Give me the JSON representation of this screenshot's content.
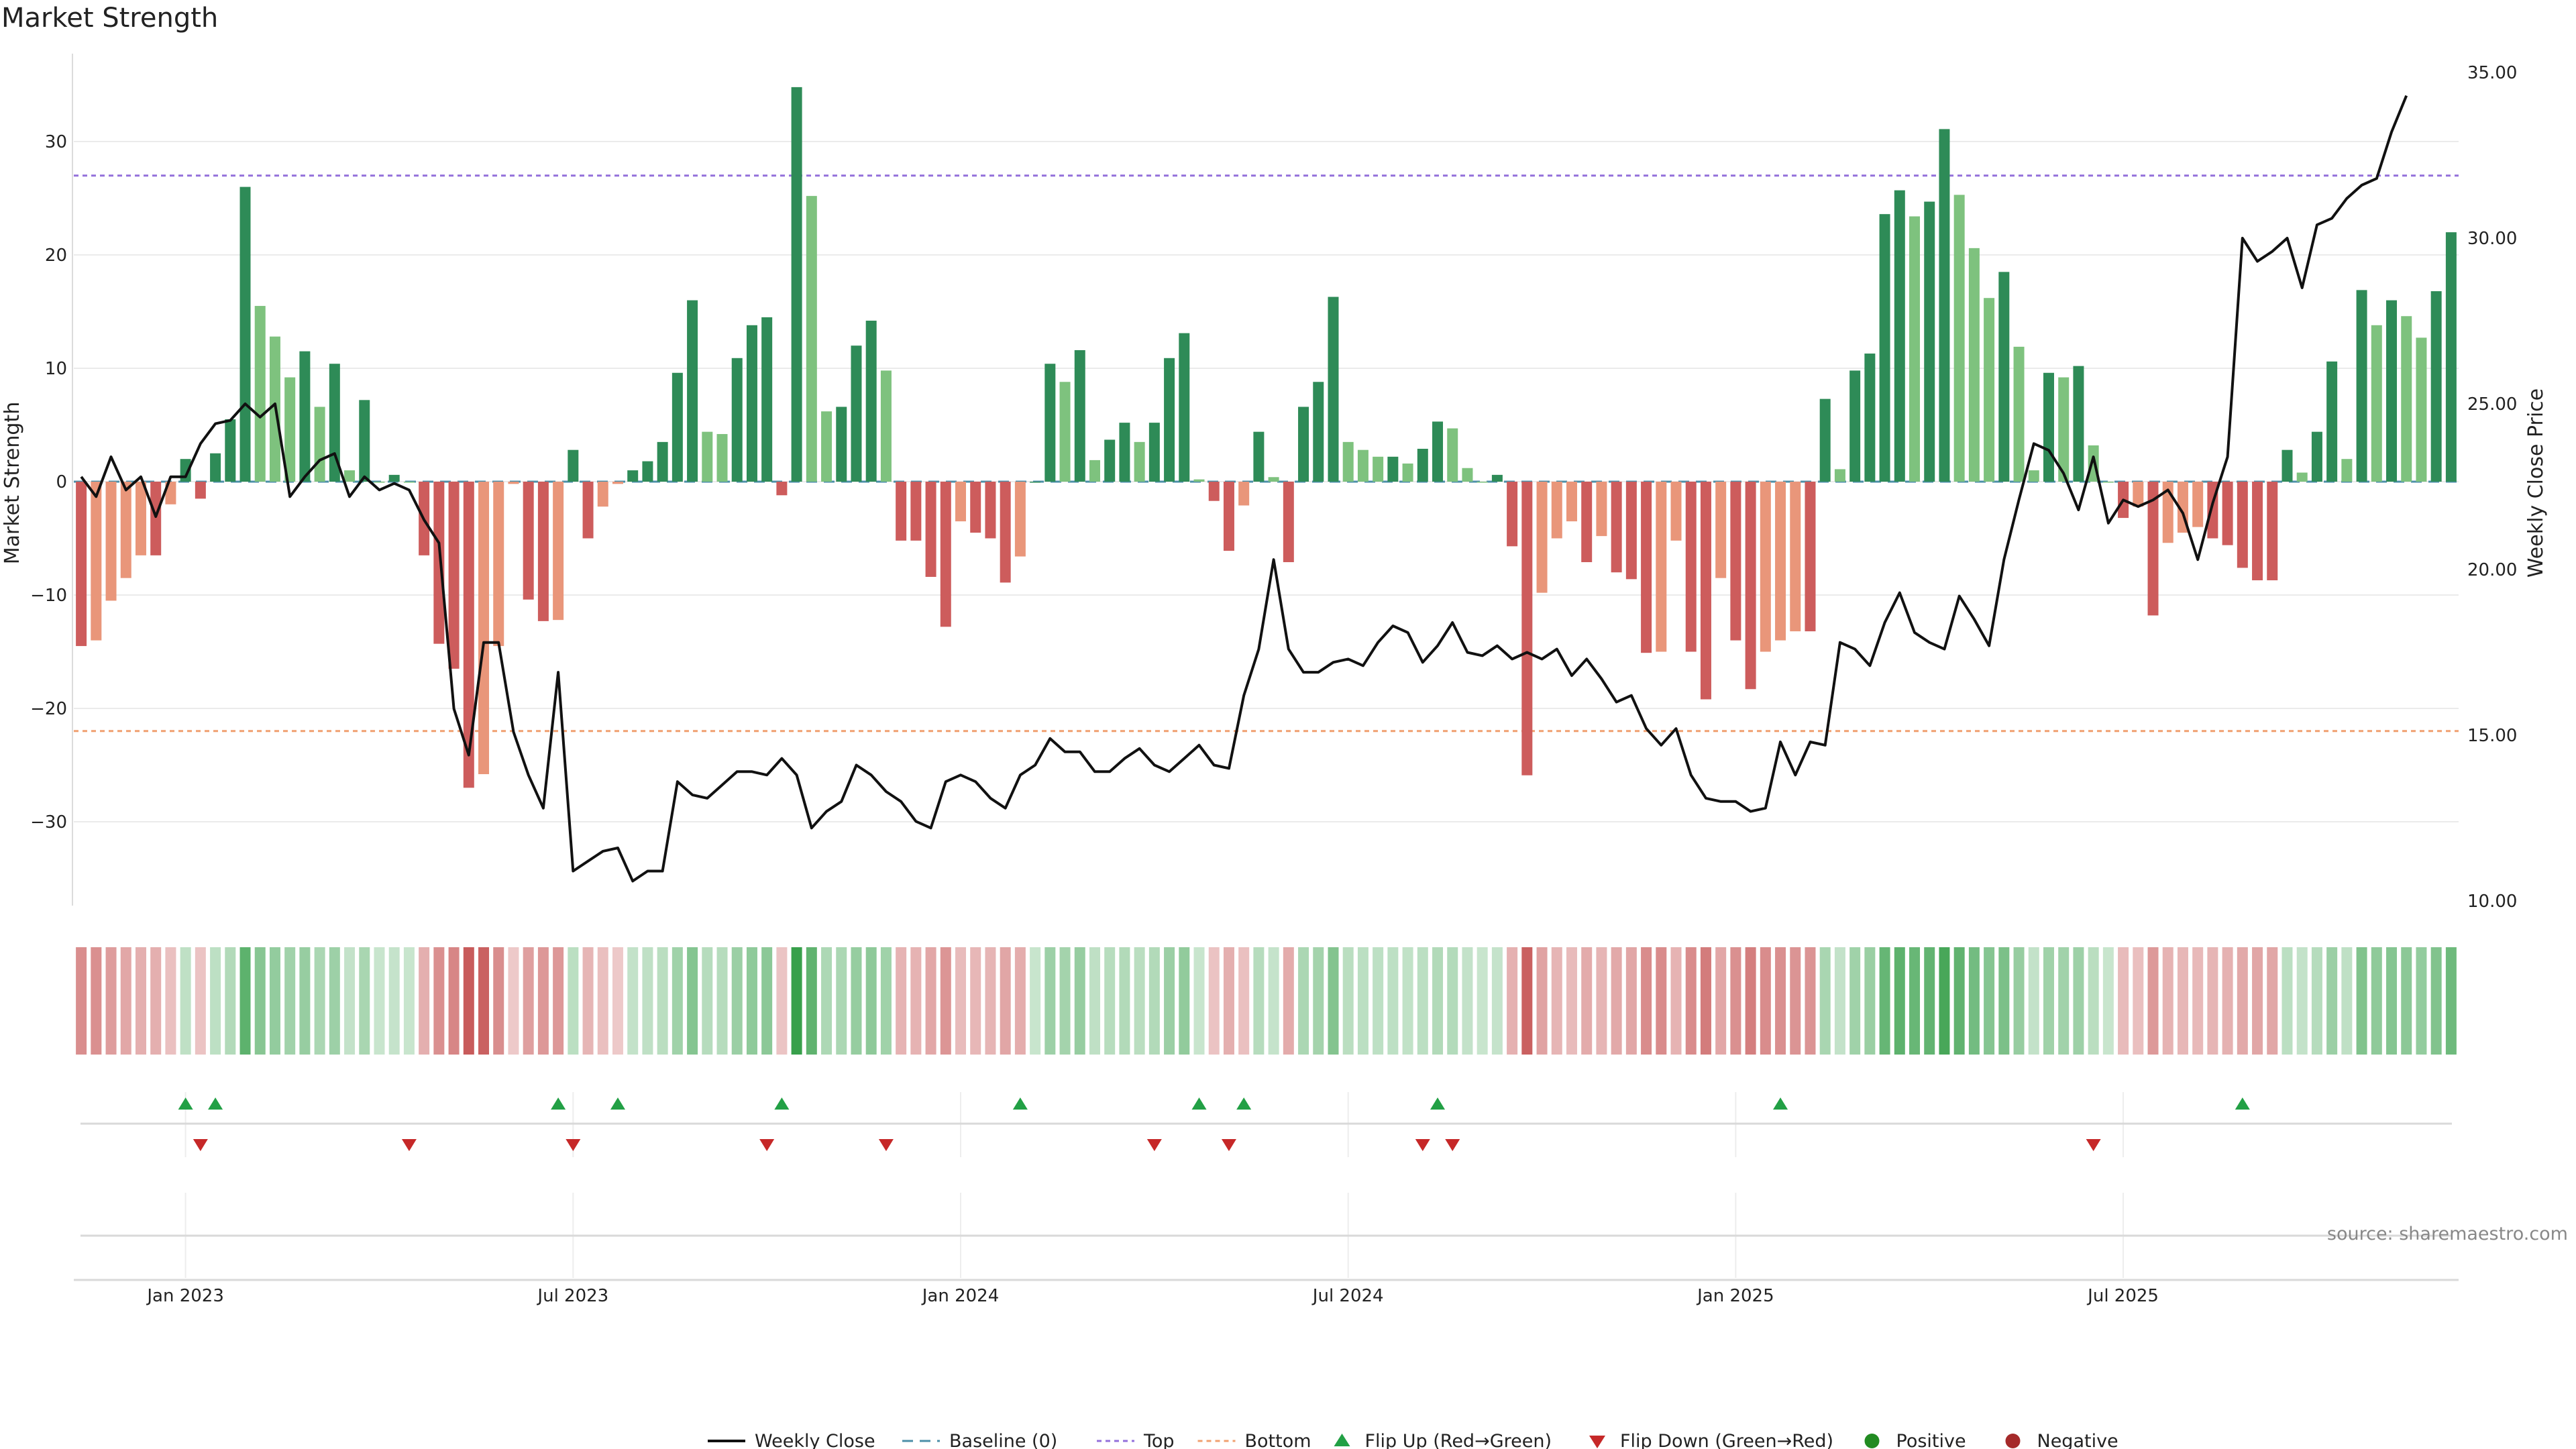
{
  "title": "Market Strength",
  "source": "source: sharemaestro.com",
  "chart_data": {
    "type": "bar",
    "ylabel_left": "Market Strength",
    "ylabel_right": "Weekly Close Price",
    "ylim_left": [
      -38,
      36
    ],
    "ylim_right": [
      10,
      35
    ],
    "yticks_left": [
      30,
      20,
      10,
      0,
      -10,
      -20,
      -30
    ],
    "yticks_right": [
      "35.00",
      "30.00",
      "25.00",
      "20.00",
      "15.00",
      "10.00"
    ],
    "yticks_left_labels": [
      "30",
      "20",
      "10",
      "0",
      "−10",
      "−20",
      "−30"
    ],
    "x_ticks": [
      "Jan 2023",
      "Jul 2023",
      "Jan 2024",
      "Jul 2024",
      "Jan 2025",
      "Jul 2025"
    ],
    "top_line": 27,
    "bottom_line": -22,
    "grid": true,
    "legend_position": "bottom",
    "legend": {
      "weekly_close": "Weekly Close",
      "baseline": "Baseline (0)",
      "top": "Top",
      "bottom": "Bottom",
      "flip_up": "Flip Up (Red→Green)",
      "flip_down": "Flip Down (Green→Red)",
      "positive": "Positive",
      "negative": "Negative"
    },
    "strength": [
      -14.5,
      -14,
      -10.5,
      -8.5,
      -6.5,
      -6.5,
      -2,
      2,
      -1.5,
      2.5,
      5.5,
      26,
      15.5,
      12.8,
      9.2,
      11.5,
      6.6,
      10.4,
      1,
      7.2,
      0,
      0.6,
      0,
      -6.5,
      -14.3,
      -16.5,
      -27,
      -25.8,
      -14.5,
      -0.2,
      -10.4,
      -12.3,
      -12.2,
      2.8,
      -5,
      -2.2,
      -0.2,
      1,
      1.8,
      3.5,
      9.6,
      16,
      4.4,
      4.2,
      10.9,
      13.8,
      14.5,
      -1.2,
      34.8,
      25.2,
      6.2,
      6.6,
      12,
      14.2,
      9.8,
      -5.2,
      -5.2,
      -8.4,
      -12.8,
      -3.5,
      -4.5,
      -5,
      -8.9,
      -6.6,
      0,
      10.4,
      8.8,
      11.6,
      1.9,
      3.7,
      5.2,
      3.5,
      5.2,
      10.9,
      13.1,
      0.2,
      -1.7,
      -6.1,
      -2.1,
      4.4,
      0.4,
      -7.1,
      6.6,
      8.8,
      16.3,
      3.5,
      2.8,
      2.2,
      2.2,
      1.6,
      2.9,
      5.3,
      4.7,
      1.2,
      0,
      0.6,
      -5.7,
      -25.9,
      -9.8,
      -5,
      -3.5,
      -7.1,
      -4.8,
      -8,
      -8.6,
      -15.1,
      -15,
      -5.2,
      -15,
      -19.2,
      -8.5,
      -14,
      -18.3,
      -15,
      -14,
      -13.2,
      -13.2,
      7.3,
      1.1,
      9.8,
      11.3,
      23.6,
      25.7,
      23.4,
      24.7,
      31.1,
      25.3,
      20.6,
      16.2,
      18.5,
      11.9,
      1,
      9.6,
      9.2,
      10.2,
      3.2,
      0,
      -3.2,
      -2.2,
      -11.8,
      -5.4,
      -4.5,
      -4,
      -5,
      -5.6,
      -7.6,
      -8.7,
      -8.7,
      2.8,
      0.8,
      4.4,
      10.6,
      2,
      16.9,
      13.8,
      16,
      14.6,
      12.7,
      16.8,
      22
    ],
    "close": [
      22.8,
      22.2,
      23.4,
      22.4,
      22.8,
      21.6,
      22.8,
      22.8,
      23.8,
      24.4,
      24.5,
      25,
      24.6,
      25,
      22.2,
      22.8,
      23.3,
      23.5,
      22.2,
      22.8,
      22.4,
      22.6,
      22.4,
      21.5,
      20.8,
      15.8,
      14.4,
      17.8,
      17.8,
      15.1,
      13.8,
      12.8,
      16.9,
      10.9,
      11.2,
      11.5,
      11.6,
      10.6,
      10.9,
      10.9,
      13.6,
      13.2,
      13.1,
      13.5,
      13.9,
      13.9,
      13.8,
      14.3,
      13.8,
      12.2,
      12.7,
      13,
      14.1,
      13.8,
      13.3,
      13,
      12.4,
      12.2,
      13.6,
      13.8,
      13.6,
      13.1,
      12.8,
      13.8,
      14.1,
      14.9,
      14.5,
      14.5,
      13.9,
      13.9,
      14.3,
      14.6,
      14.1,
      13.9,
      14.3,
      14.7,
      14.1,
      14,
      16.2,
      17.6,
      20.3,
      17.6,
      16.9,
      16.9,
      17.2,
      17.3,
      17.1,
      17.8,
      18.3,
      18.1,
      17.2,
      17.7,
      18.4,
      17.5,
      17.4,
      17.7,
      17.3,
      17.5,
      17.3,
      17.6,
      16.8,
      17.3,
      16.7,
      16,
      16.2,
      15.2,
      14.7,
      15.2,
      13.8,
      13.1,
      13,
      13,
      12.7,
      12.8,
      14.8,
      13.8,
      14.8,
      14.7,
      17.8,
      17.6,
      17.1,
      18.4,
      19.3,
      18.1,
      17.8,
      17.6,
      19.2,
      18.5,
      17.7,
      20.3,
      22.1,
      23.8,
      23.6,
      22.9,
      21.8,
      23.4,
      21.4,
      22.1,
      21.9,
      22.1,
      22.4,
      21.7,
      20.3,
      22,
      23.4,
      30,
      29.3,
      29.6,
      30,
      28.5,
      30.4,
      30.6,
      31.2,
      31.6,
      31.8,
      33.2,
      34.3
    ],
    "flip_up_weeks": [
      7,
      9,
      32,
      36,
      47,
      63,
      75,
      78,
      91,
      114,
      145
    ],
    "flip_down_weeks": [
      8,
      22,
      33,
      46,
      54,
      72,
      77,
      90,
      92,
      135
    ]
  },
  "colors": {
    "pos_strong": "#2e8b57",
    "pos_light": "#7ec27e",
    "neg_strong": "#cd5c5c",
    "neg_light": "#e9967a",
    "close_line": "#111111",
    "baseline": "#4c8fa8",
    "top": "#9370db",
    "bottom": "#f0a070",
    "flip_up": "#22a045",
    "flip_down": "#c62828",
    "positive_dot": "#228b22",
    "negative_dot": "#a52a2a"
  }
}
